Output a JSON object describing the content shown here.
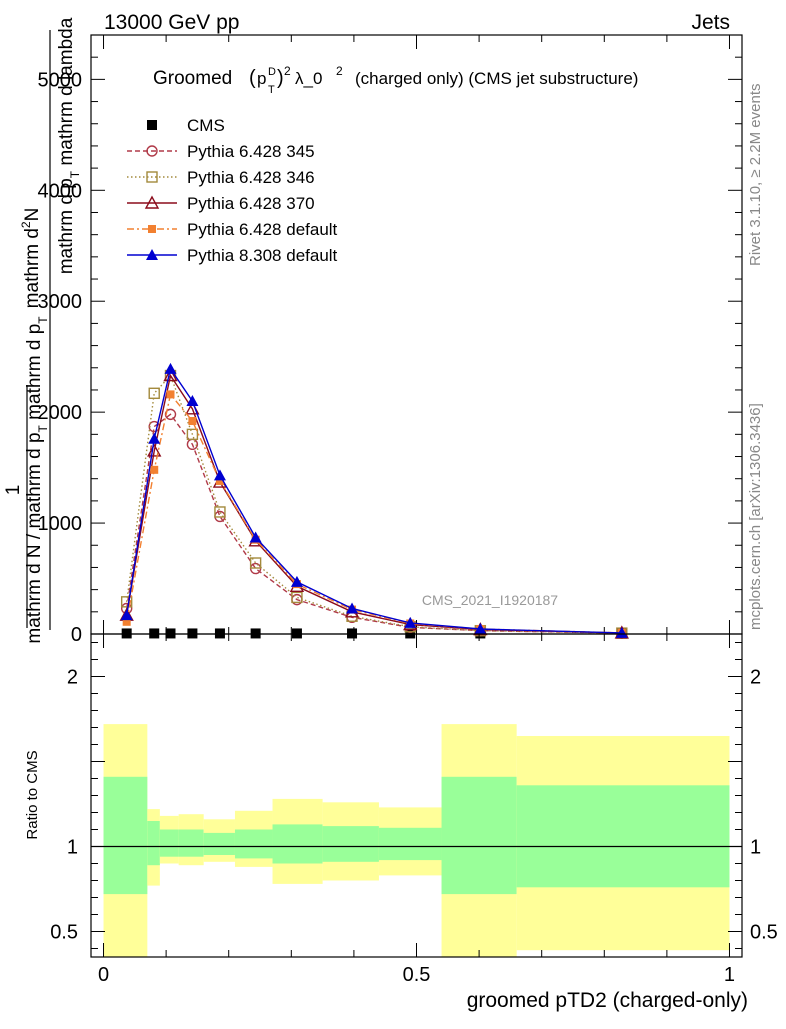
{
  "header": {
    "energy_label": "13000 GeV pp",
    "process_label": "Jets"
  },
  "side_text": {
    "rivet": "Rivet 3.1.10, ≥ 2.2M events",
    "mcplots": "mcplots.cern.ch [arXiv:1306.3436]"
  },
  "colors": {
    "cms": "#000000",
    "p345": "#b03a48",
    "p346": "#a38a3c",
    "p370": "#8b0c1c",
    "p6def": "#f28030",
    "p8def": "#0000d0",
    "band_outer": "#ffff99",
    "band_inner": "#99ff99"
  },
  "chart_data": [
    {
      "type": "line",
      "title": "Groomed (p_T^D)^2 λ_0^2  (charged only) (CMS jet substructure)",
      "title_parts": {
        "word": "Groomed",
        "p": "p",
        "sup_D": "D",
        "sub_T": "T",
        "sup_2": "2",
        "lambda": "λ_0",
        "sup_2b": "2",
        "rest": "(charged only) (CMS jet substructure)"
      },
      "ylabel": {
        "top_num": "mathrm d",
        "top_num_sup": "2",
        "top_N": "N",
        "top_den_a": "mathrm d p",
        "top_den_sub": "T",
        "top_den_b": " mathrm d lambda",
        "one": "1",
        "bottom_a": "mathrm d N / mathrm d p",
        "bottom_sub": "T",
        "bottom_b": " mathrm d p",
        "bottom_sub2": "T"
      },
      "watermark": "CMS_2021_I1920187",
      "xlim": [
        -0.02,
        1.02
      ],
      "ylim": [
        0,
        5400
      ],
      "y_ticks": [
        0,
        1000,
        2000,
        3000,
        4000,
        5000
      ],
      "y_tick_labels": [
        "0",
        "1000",
        "2000",
        "3000",
        "4000",
        "5000"
      ],
      "legend_position": "top-left",
      "x": [
        0.037,
        0.081,
        0.107,
        0.142,
        0.186,
        0.243,
        0.309,
        0.397,
        0.49,
        0.602,
        0.828
      ],
      "series": [
        {
          "key": "cms",
          "name": "CMS",
          "marker": "square-filled",
          "dash": "none",
          "values": [
            5,
            5,
            5,
            5,
            5,
            5,
            5,
            5,
            5,
            5,
            5
          ]
        },
        {
          "key": "p345",
          "name": "Pythia 6.428 345",
          "marker": "circle-open",
          "dash": "5,3",
          "values": [
            230,
            1870,
            1980,
            1710,
            1060,
            590,
            310,
            150,
            60,
            30,
            8
          ]
        },
        {
          "key": "p346",
          "name": "Pythia 6.428 346",
          "marker": "square-open",
          "dash": "1.5,2.5",
          "values": [
            290,
            2170,
            2330,
            1800,
            1100,
            640,
            330,
            160,
            65,
            30,
            8
          ]
        },
        {
          "key": "p370",
          "name": "Pythia 6.428 370",
          "marker": "triangle-open",
          "dash": "none",
          "values": [
            170,
            1650,
            2330,
            2030,
            1370,
            840,
            430,
            200,
            85,
            40,
            10
          ]
        },
        {
          "key": "p6def",
          "name": "Pythia 6.428 default",
          "marker": "square-filled-small",
          "dash": "7,3,2,3",
          "values": [
            110,
            1480,
            2160,
            1920,
            1380,
            850,
            450,
            220,
            95,
            45,
            10
          ]
        },
        {
          "key": "p8def",
          "name": "Pythia 8.308 default",
          "marker": "triangle-filled",
          "dash": "none",
          "values": [
            170,
            1760,
            2390,
            2100,
            1430,
            870,
            470,
            230,
            100,
            45,
            10
          ]
        }
      ]
    },
    {
      "type": "area",
      "ylabel": "Ratio to CMS",
      "xlabel": "groomed pTD2 (charged-only)",
      "xlim": [
        -0.02,
        1.02
      ],
      "ylim": [
        0.35,
        2.25
      ],
      "x_ticks": [
        0,
        0.5,
        1
      ],
      "x_tick_labels": [
        "0",
        "0.5",
        "1"
      ],
      "y_ticks": [
        0.5,
        1,
        2
      ],
      "y_tick_labels": [
        "0.5",
        "1",
        "2"
      ],
      "reference_line": 1,
      "bins": [
        {
          "x0": 0.0,
          "x1": 0.07,
          "outer": [
            0.35,
            1.72
          ],
          "inner": [
            0.72,
            1.41
          ]
        },
        {
          "x0": 0.07,
          "x1": 0.09,
          "outer": [
            0.77,
            1.22
          ],
          "inner": [
            0.89,
            1.15
          ]
        },
        {
          "x0": 0.09,
          "x1": 0.12,
          "outer": [
            0.9,
            1.18
          ],
          "inner": [
            0.94,
            1.1
          ]
        },
        {
          "x0": 0.12,
          "x1": 0.16,
          "outer": [
            0.89,
            1.19
          ],
          "inner": [
            0.94,
            1.1
          ]
        },
        {
          "x0": 0.16,
          "x1": 0.21,
          "outer": [
            0.91,
            1.16
          ],
          "inner": [
            0.95,
            1.08
          ]
        },
        {
          "x0": 0.21,
          "x1": 0.27,
          "outer": [
            0.88,
            1.21
          ],
          "inner": [
            0.93,
            1.1
          ]
        },
        {
          "x0": 0.27,
          "x1": 0.35,
          "outer": [
            0.78,
            1.28
          ],
          "inner": [
            0.9,
            1.13
          ]
        },
        {
          "x0": 0.35,
          "x1": 0.44,
          "outer": [
            0.8,
            1.26
          ],
          "inner": [
            0.91,
            1.12
          ]
        },
        {
          "x0": 0.44,
          "x1": 0.54,
          "outer": [
            0.83,
            1.23
          ],
          "inner": [
            0.92,
            1.11
          ]
        },
        {
          "x0": 0.54,
          "x1": 0.66,
          "outer": [
            0.35,
            1.72
          ],
          "inner": [
            0.72,
            1.41
          ]
        },
        {
          "x0": 0.66,
          "x1": 1.0,
          "outer": [
            0.39,
            1.65
          ],
          "inner": [
            0.76,
            1.36
          ]
        }
      ]
    }
  ]
}
